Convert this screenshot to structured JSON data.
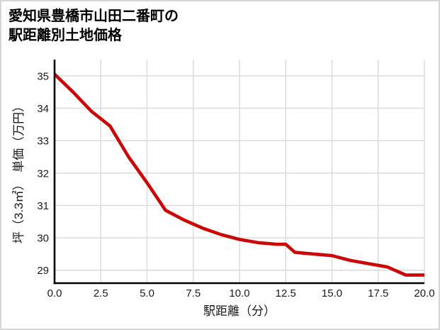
{
  "title": {
    "line1": "愛知県豊橋市山田二番町の",
    "line2": "駅距離別土地価格"
  },
  "chart_data": {
    "type": "line",
    "title": "愛知県豊橋市山田二番町の駅距離別土地価格",
    "xlabel": "駅距離（分）",
    "ylabel": "坪（3.3㎡）　単価（万円）",
    "x": [
      0,
      1,
      2,
      3,
      4,
      5,
      6,
      7,
      8,
      9,
      10,
      11,
      12,
      12.5,
      13,
      14,
      15,
      16,
      17,
      18,
      19,
      20
    ],
    "y": [
      35.05,
      34.5,
      33.9,
      33.45,
      32.5,
      31.7,
      30.85,
      30.55,
      30.3,
      30.1,
      29.95,
      29.85,
      29.8,
      29.8,
      29.55,
      29.5,
      29.45,
      29.3,
      29.2,
      29.1,
      28.85,
      28.85
    ],
    "xticks": [
      0,
      2.5,
      5,
      7.5,
      10,
      12.5,
      15,
      17.5,
      20
    ],
    "xtick_labels": [
      "0.0",
      "2.5",
      "5.0",
      "7.5",
      "10.0",
      "12.5",
      "15.0",
      "17.5",
      "20.0"
    ],
    "yticks": [
      29,
      30,
      31,
      32,
      33,
      34,
      35
    ],
    "ytick_labels": [
      "29",
      "30",
      "31",
      "32",
      "33",
      "34",
      "35"
    ],
    "xlim": [
      0,
      20
    ],
    "ylim": [
      28.6,
      35.5
    ],
    "grid": true,
    "legend": false,
    "line_color": "#cc0606",
    "grid_color": "#d9d9d9",
    "axis_color": "#000000",
    "text_color": "#1a1a1a"
  }
}
